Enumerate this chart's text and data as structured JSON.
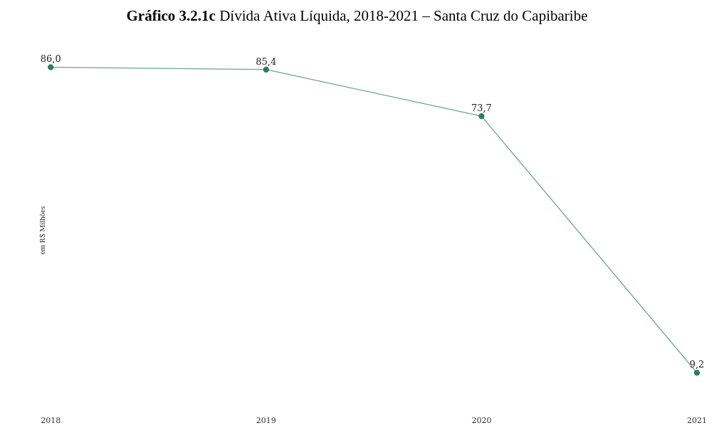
{
  "chart_data": {
    "type": "line",
    "title": "Gráfico 3.2.1c Dívida Ativa Líquida, 2018-2021 – Santa Cruz do Capibaribe",
    "ylabel": "em R$ Milhões",
    "categories": [
      "2018",
      "2019",
      "2020",
      "2021"
    ],
    "series": [
      {
        "color": "#6aa58f",
        "values": [
          86.0,
          85.4,
          73.7,
          9.2
        ],
        "value_labels": [
          "86,0",
          "85,4",
          "73,7",
          "9,2"
        ]
      }
    ],
    "marker": "circle",
    "grid": false,
    "legend": false,
    "tick_labels": "x"
  }
}
